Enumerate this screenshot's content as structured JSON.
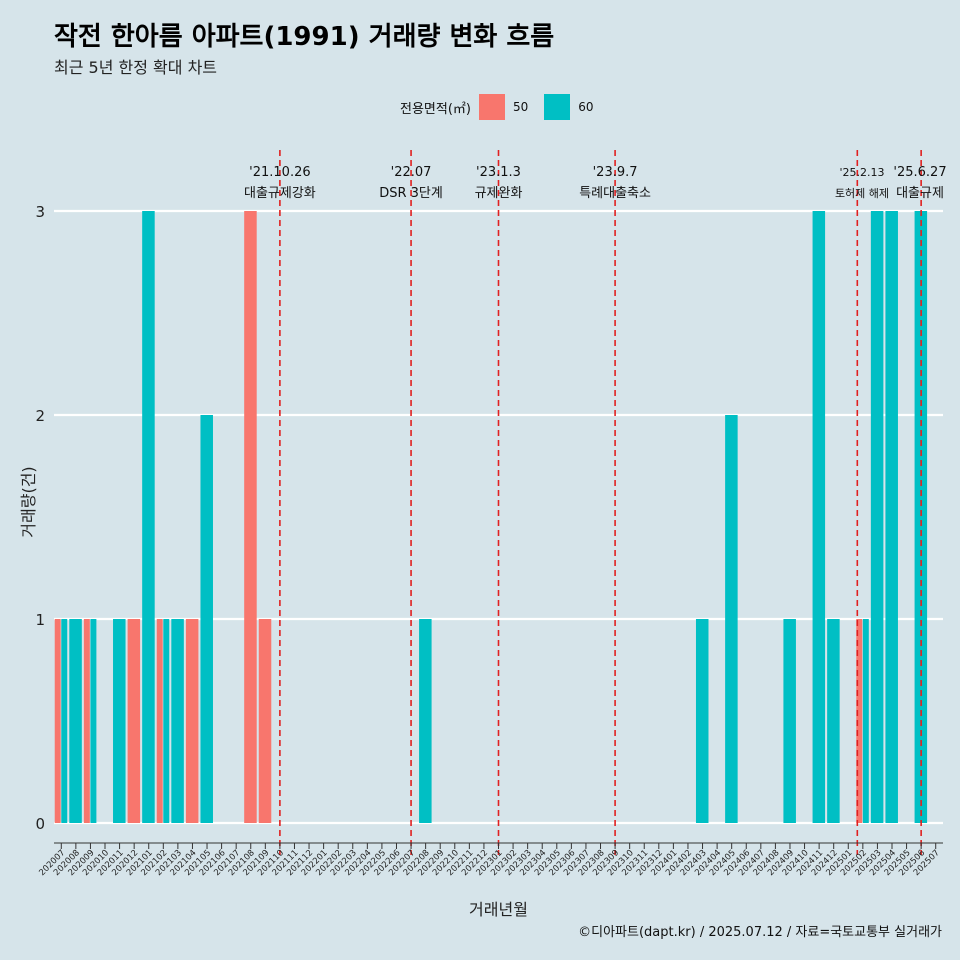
{
  "header": {
    "title": "작전 한아름 아파트(1991) 거래량 변화 흐름",
    "subtitle": "최근 5년 한정 확대 차트"
  },
  "legend": {
    "title": "전용면적(㎡)",
    "items": [
      {
        "label": "50",
        "color": "#f8766d"
      },
      {
        "label": "60",
        "color": "#00bfc4"
      }
    ]
  },
  "caption": "©디아파트(dapt.kr) / 2025.07.12 / 자료=국토교통부 실거래가",
  "chart_data": {
    "type": "bar",
    "xlabel": "거래년월",
    "ylabel": "거래량(건)",
    "ylim": [
      0,
      3
    ],
    "yticks": [
      0,
      1,
      2,
      3
    ],
    "grid": "horizontal",
    "legend_position": "top",
    "categories": [
      "202007",
      "202008",
      "202009",
      "202010",
      "202011",
      "202012",
      "202101",
      "202102",
      "202103",
      "202104",
      "202105",
      "202106",
      "202107",
      "202108",
      "202109",
      "202110",
      "202111",
      "202112",
      "202201",
      "202202",
      "202203",
      "202204",
      "202205",
      "202206",
      "202207",
      "202208",
      "202209",
      "202210",
      "202211",
      "202212",
      "202301",
      "202302",
      "202303",
      "202304",
      "202305",
      "202306",
      "202307",
      "202308",
      "202309",
      "202310",
      "202311",
      "202312",
      "202401",
      "202402",
      "202403",
      "202404",
      "202405",
      "202406",
      "202407",
      "202408",
      "202409",
      "202410",
      "202411",
      "202412",
      "202501",
      "202502",
      "202503",
      "202504",
      "202505",
      "202506",
      "202507"
    ],
    "series": [
      {
        "name": "50",
        "color": "#f8766d",
        "values": [
          1,
          0,
          1,
          0,
          0,
          1,
          0,
          1,
          0,
          1,
          0,
          0,
          0,
          3,
          1,
          0,
          0,
          0,
          0,
          0,
          0,
          0,
          0,
          0,
          0,
          0,
          0,
          0,
          0,
          0,
          0,
          0,
          0,
          0,
          0,
          0,
          0,
          0,
          0,
          0,
          0,
          0,
          0,
          0,
          0,
          0,
          0,
          0,
          0,
          0,
          0,
          0,
          0,
          0,
          0,
          1,
          0,
          0,
          0,
          0,
          0
        ]
      },
      {
        "name": "60",
        "color": "#00bfc4",
        "values": [
          1,
          1,
          1,
          0,
          1,
          0,
          3,
          1,
          1,
          0,
          2,
          0,
          0,
          0,
          0,
          0,
          0,
          0,
          0,
          0,
          0,
          0,
          0,
          0,
          0,
          1,
          0,
          0,
          0,
          0,
          0,
          0,
          0,
          0,
          0,
          0,
          0,
          0,
          0,
          0,
          0,
          0,
          0,
          0,
          1,
          0,
          2,
          0,
          0,
          0,
          1,
          0,
          3,
          1,
          0,
          1,
          3,
          3,
          0,
          3,
          0
        ]
      }
    ],
    "annotations": [
      {
        "x": "202110",
        "date": "'21.10.26",
        "label": "대출규제강화"
      },
      {
        "x": "202207",
        "date": "'22.07",
        "label": "DSR 3단계"
      },
      {
        "x": "202301",
        "date": "'23.1.3",
        "label": "규제완화"
      },
      {
        "x": "202309",
        "date": "'23.9.7",
        "label": "특례대출축소"
      },
      {
        "x": "202502",
        "date": "'25.2.13",
        "label": "토허제 해제"
      },
      {
        "x": "202506",
        "date": "'25.6.27",
        "label": "대출규제"
      }
    ]
  }
}
